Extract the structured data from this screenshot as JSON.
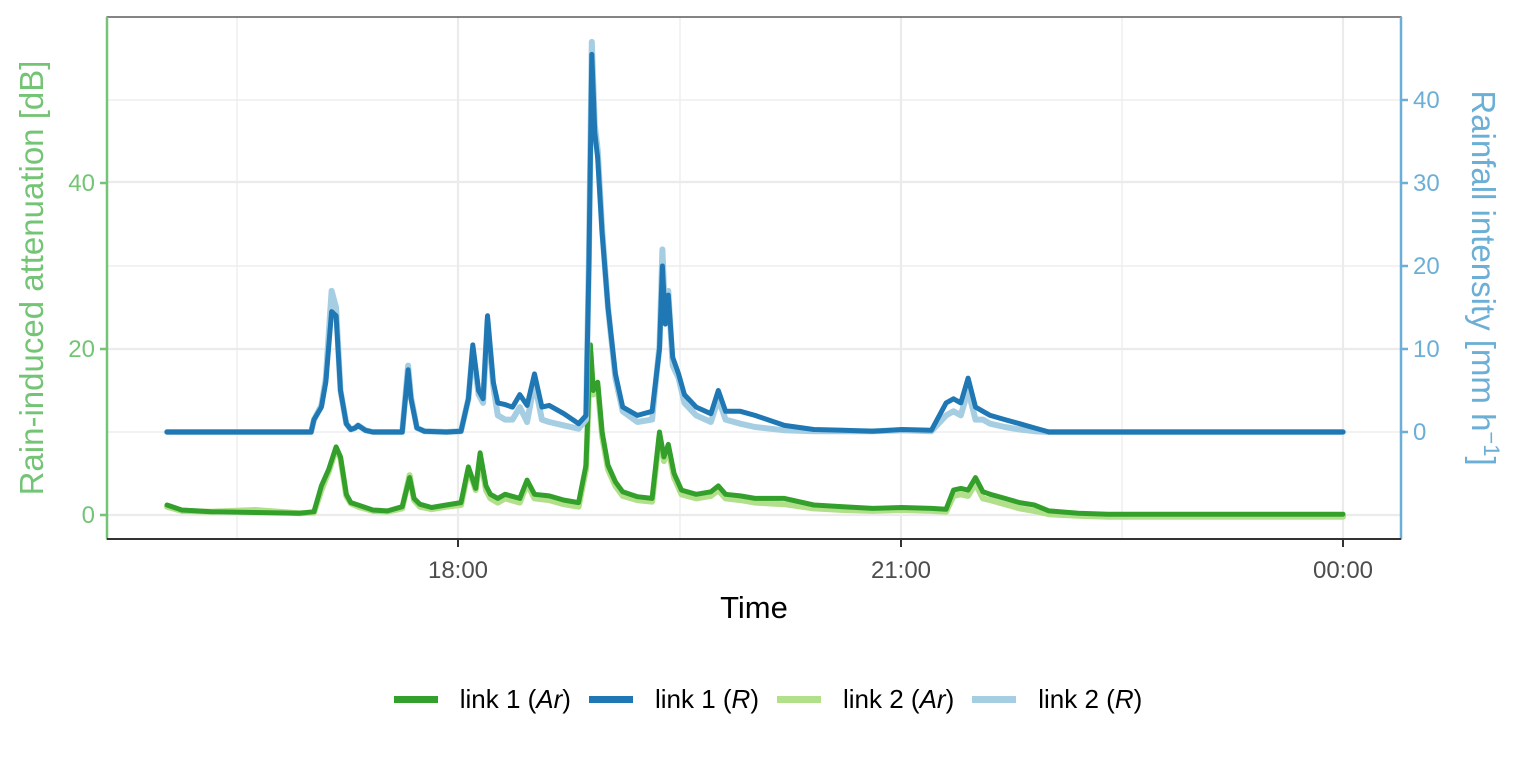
{
  "chart_data": {
    "type": "line",
    "title": "",
    "xlabel": "Time",
    "ylabel_left": "Rain-induced attenuation [dB]",
    "ylabel_right": "Rainfall intensity [mm h⁻¹]",
    "x_ticks": [
      "18:00",
      "21:00",
      "00:00"
    ],
    "y_left_ticks": [
      0,
      20,
      40
    ],
    "y_right_ticks": [
      0,
      10,
      20,
      30,
      40
    ],
    "y_left_range": [
      -3,
      59
    ],
    "y_right_range": [
      -13,
      50
    ],
    "x_range_minutes_from_1600": [
      -105,
      483
    ],
    "grid": true,
    "legend_position": "bottom",
    "x_units": "minutes after 16:00",
    "series": [
      {
        "name": "link 1 (Ar)",
        "axis": "left",
        "color": "#33a02c",
        "x": [
          0,
          10,
          30,
          60,
          90,
          100,
          105,
          110,
          115,
          118,
          122,
          125,
          130,
          140,
          150,
          160,
          165,
          168,
          172,
          180,
          190,
          200,
          205,
          210,
          213,
          217,
          220,
          225,
          230,
          240,
          245,
          250,
          260,
          270,
          280,
          285,
          288,
          290,
          293,
          296,
          300,
          305,
          310,
          320,
          330,
          335,
          338,
          341,
          345,
          350,
          360,
          370,
          375,
          380,
          390,
          400,
          420,
          440,
          460,
          480,
          500,
          520,
          530,
          535,
          540,
          545,
          550,
          555,
          560,
          570,
          580,
          590,
          600,
          620,
          640,
          660,
          680,
          700,
          720,
          730,
          750,
          770,
          800
        ],
        "values": [
          1.2,
          0.6,
          0.4,
          0.3,
          0.2,
          0.4,
          3.5,
          5.5,
          8.2,
          7.0,
          2.5,
          1.5,
          1.2,
          0.6,
          0.5,
          1.0,
          4.5,
          2.0,
          1.3,
          0.9,
          1.2,
          1.5,
          5.8,
          3.2,
          7.5,
          3.5,
          2.5,
          2.0,
          2.5,
          2.0,
          4.2,
          2.5,
          2.3,
          1.8,
          1.5,
          6.0,
          20.5,
          15.0,
          16.0,
          10.0,
          6.0,
          4.0,
          2.8,
          2.2,
          2.0,
          10.0,
          7.0,
          8.5,
          5.0,
          3.0,
          2.5,
          2.8,
          3.5,
          2.5,
          2.3,
          2.0,
          2.0,
          1.2,
          1.0,
          0.8,
          0.9,
          0.8,
          0.7,
          3.0,
          3.2,
          3.0,
          4.5,
          2.8,
          2.5,
          2.0,
          1.5,
          1.2,
          0.5,
          0.2,
          0.1,
          0.1,
          0.1,
          0.1,
          0.1,
          0.1,
          0.1,
          0.1,
          0.1
        ]
      },
      {
        "name": "link 1 (R)",
        "axis": "right",
        "color": "#1f78b4",
        "x": [
          0,
          30,
          60,
          90,
          98,
          100,
          105,
          108,
          112,
          115,
          118,
          122,
          125,
          128,
          130,
          135,
          140,
          150,
          160,
          164,
          166,
          170,
          175,
          190,
          200,
          205,
          208,
          212,
          215,
          218,
          222,
          225,
          230,
          235,
          240,
          245,
          250,
          255,
          260,
          270,
          280,
          285,
          287,
          289,
          291,
          293,
          296,
          300,
          305,
          310,
          320,
          330,
          335,
          337,
          339,
          341,
          344,
          348,
          352,
          360,
          370,
          375,
          380,
          390,
          400,
          420,
          440,
          460,
          480,
          500,
          520,
          530,
          535,
          540,
          545,
          550,
          555,
          560,
          570,
          580,
          590,
          600,
          620,
          660,
          720,
          800
        ],
        "values": [
          0,
          0,
          0,
          0,
          0,
          1.5,
          3.0,
          6.0,
          14.5,
          14.0,
          5.0,
          1.0,
          0.3,
          0.5,
          0.8,
          0.2,
          0,
          0,
          0,
          7.5,
          4.0,
          0.5,
          0.1,
          0,
          0.1,
          4.0,
          10.5,
          5.0,
          4.0,
          14.0,
          6.0,
          3.5,
          3.3,
          3.0,
          4.5,
          3.2,
          7.0,
          3.0,
          3.2,
          2.2,
          1.0,
          2.0,
          20.0,
          45.5,
          36.0,
          33.0,
          24.0,
          15.0,
          7.0,
          3.0,
          2.0,
          2.5,
          10.0,
          20.0,
          13.0,
          16.5,
          9.0,
          7.0,
          4.5,
          3.0,
          2.2,
          5.0,
          2.5,
          2.5,
          2.0,
          0.8,
          0.3,
          0.2,
          0.1,
          0.3,
          0.2,
          3.5,
          4.0,
          3.5,
          6.5,
          3.0,
          2.5,
          2.0,
          1.5,
          1.0,
          0.5,
          0,
          0,
          0,
          0,
          0
        ]
      },
      {
        "name": "link 2 (Ar)",
        "axis": "left",
        "color": "#b2df8a",
        "x": [
          0,
          10,
          30,
          60,
          90,
          100,
          105,
          110,
          115,
          118,
          122,
          125,
          130,
          140,
          150,
          160,
          165,
          168,
          172,
          180,
          190,
          200,
          205,
          210,
          213,
          217,
          220,
          225,
          230,
          240,
          245,
          250,
          260,
          270,
          280,
          285,
          288,
          290,
          293,
          296,
          300,
          305,
          310,
          320,
          330,
          335,
          338,
          341,
          345,
          350,
          360,
          370,
          375,
          380,
          390,
          400,
          420,
          440,
          460,
          480,
          500,
          520,
          530,
          535,
          540,
          545,
          550,
          555,
          560,
          570,
          580,
          590,
          600,
          620,
          640,
          660,
          680,
          700,
          720,
          730,
          750,
          770,
          800
        ],
        "values": [
          1.0,
          0.5,
          0.4,
          0.6,
          0.2,
          0.3,
          3.0,
          5.2,
          8.0,
          6.8,
          2.3,
          1.4,
          1.0,
          0.5,
          0.4,
          0.8,
          4.8,
          1.8,
          1.0,
          0.7,
          1.0,
          1.2,
          5.5,
          3.0,
          7.0,
          3.0,
          2.0,
          1.5,
          2.0,
          1.5,
          3.8,
          2.0,
          1.8,
          1.3,
          1.0,
          5.5,
          19.5,
          14.5,
          15.5,
          9.5,
          5.5,
          3.5,
          2.3,
          1.8,
          1.6,
          9.5,
          6.5,
          8.0,
          4.5,
          2.5,
          2.0,
          2.3,
          3.0,
          2.0,
          1.8,
          1.5,
          1.3,
          0.8,
          0.6,
          0.5,
          0.6,
          0.5,
          0.4,
          2.3,
          2.5,
          2.3,
          3.8,
          2.0,
          1.8,
          1.3,
          0.8,
          0.5,
          0.1,
          -0.1,
          -0.2,
          -0.2,
          -0.2,
          -0.2,
          -0.2,
          -0.2,
          -0.2,
          -0.2,
          -0.2
        ]
      },
      {
        "name": "link 2 (R)",
        "axis": "right",
        "color": "#a6cee3",
        "x": [
          0,
          30,
          60,
          90,
          98,
          100,
          105,
          108,
          112,
          115,
          118,
          122,
          125,
          128,
          130,
          135,
          140,
          150,
          160,
          164,
          166,
          170,
          175,
          190,
          200,
          205,
          208,
          212,
          215,
          218,
          222,
          225,
          230,
          235,
          240,
          245,
          250,
          255,
          260,
          270,
          280,
          285,
          287,
          289,
          291,
          293,
          296,
          300,
          305,
          310,
          320,
          330,
          335,
          337,
          339,
          341,
          344,
          348,
          352,
          360,
          370,
          375,
          380,
          390,
          400,
          420,
          440,
          460,
          480,
          500,
          520,
          530,
          535,
          540,
          545,
          550,
          555,
          560,
          570,
          580,
          590,
          600,
          620,
          660,
          720,
          800
        ],
        "values": [
          0,
          0,
          0,
          0,
          0,
          1.5,
          3.2,
          6.5,
          17.0,
          15.0,
          5.0,
          1.0,
          0.3,
          0.5,
          0.8,
          0.2,
          0,
          0,
          0,
          8.0,
          4.2,
          0.5,
          0.1,
          0,
          0.1,
          4.0,
          10.0,
          4.5,
          3.5,
          13.5,
          5.5,
          2.0,
          1.5,
          1.5,
          3.0,
          1.2,
          6.0,
          1.5,
          1.2,
          0.8,
          0.4,
          1.5,
          21.0,
          47.0,
          37.0,
          34.0,
          24.5,
          15.0,
          6.5,
          2.5,
          1.2,
          1.5,
          10.5,
          22.0,
          13.5,
          17.0,
          8.0,
          6.5,
          3.5,
          2.0,
          1.2,
          4.0,
          1.5,
          1.0,
          0.6,
          0.2,
          0.1,
          0.1,
          0.1,
          0.2,
          0.1,
          2.0,
          2.5,
          2.0,
          5.0,
          1.5,
          1.5,
          1.0,
          0.6,
          0.3,
          0.1,
          0,
          0,
          0,
          0,
          0
        ]
      }
    ]
  },
  "legend": {
    "items": [
      {
        "prefix": "link 1 (",
        "italic": "Ar",
        "suffix": ")",
        "color": "#33a02c"
      },
      {
        "prefix": "link 1 (",
        "italic": "R",
        "suffix": ")",
        "color": "#1f78b4"
      },
      {
        "prefix": "link 2 (",
        "italic": "Ar",
        "suffix": ")",
        "color": "#b2df8a"
      },
      {
        "prefix": "link 2 (",
        "italic": "R",
        "suffix": ")",
        "color": "#a6cee3"
      }
    ]
  },
  "colors": {
    "left_axis": "#74c476",
    "right_axis": "#6baed6",
    "grid": "#ebebeb",
    "panel_border": "#333333"
  }
}
